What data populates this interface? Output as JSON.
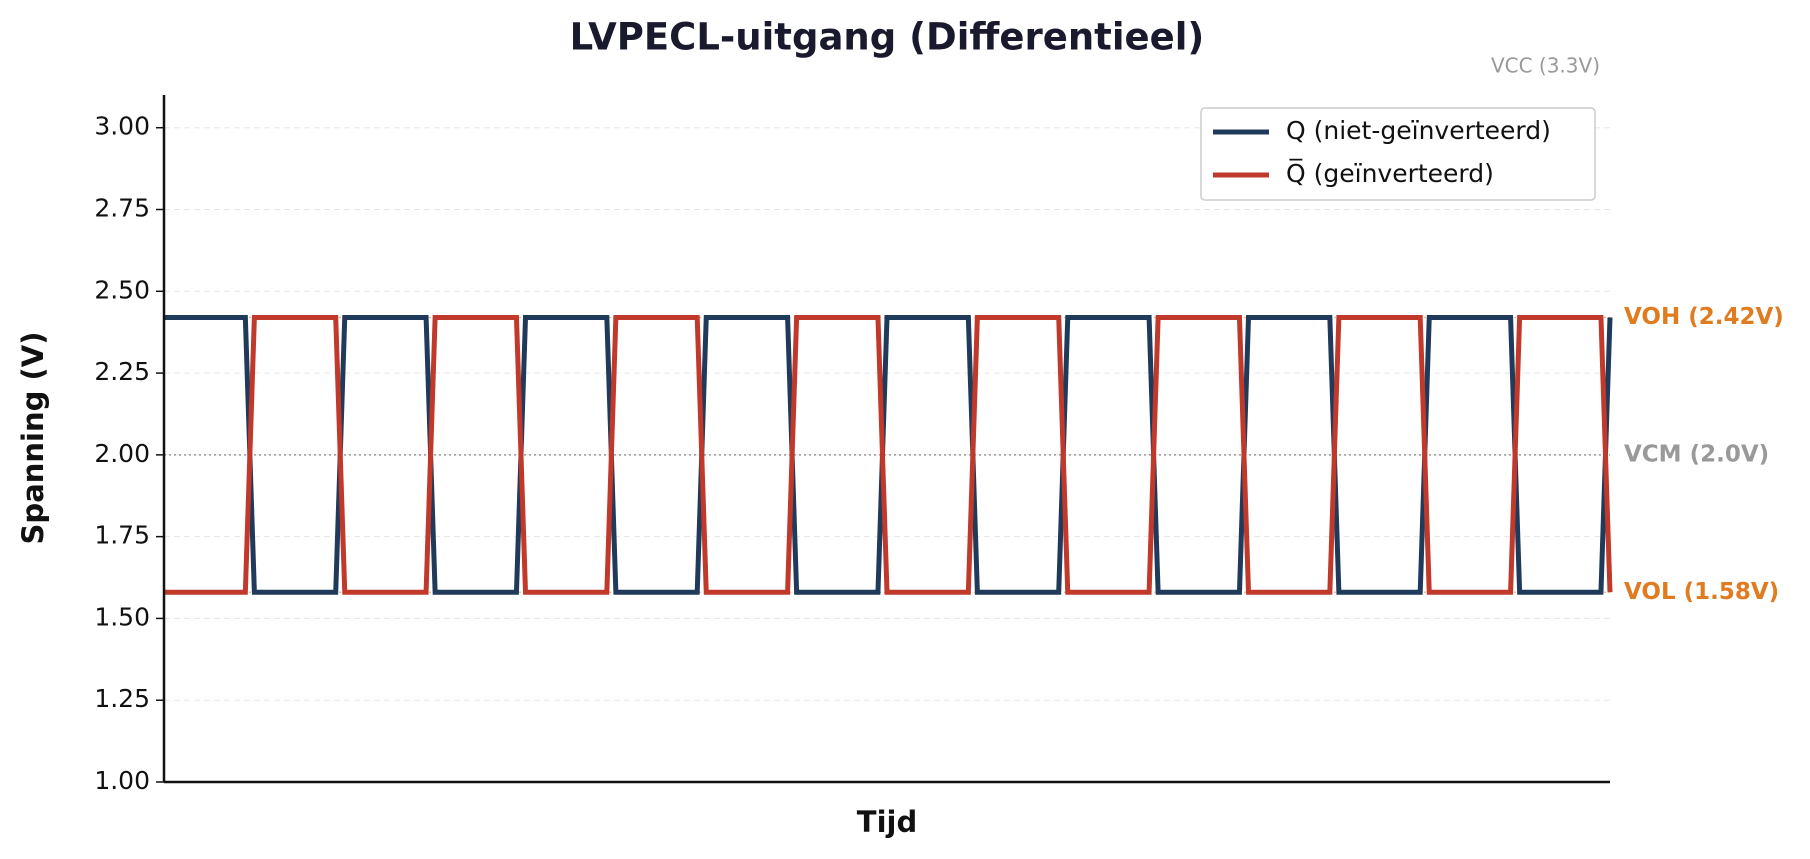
{
  "chart_data": {
    "type": "line",
    "title": "LVPECL-uitgang (Differentieel)",
    "x_label": "Tijd",
    "y_label": "Spanning (V)",
    "x": [
      0,
      0.45,
      0.5,
      0.95,
      1,
      1.45,
      1.5,
      1.95,
      2,
      2.45,
      2.5,
      2.95,
      3,
      3.45,
      3.5,
      3.95,
      4,
      4.45,
      4.5,
      4.95,
      5,
      5.45,
      5.5,
      5.95,
      6,
      6.45,
      6.5,
      6.95,
      7,
      7.45,
      7.5,
      7.95,
      8
    ],
    "series": [
      {
        "name": "Q (niet-geïnverteerd)",
        "color": "#1f3a5a",
        "values": [
          2.42,
          2.42,
          1.58,
          1.58,
          2.42,
          2.42,
          1.58,
          1.58,
          2.42,
          2.42,
          1.58,
          1.58,
          2.42,
          2.42,
          1.58,
          1.58,
          2.42,
          2.42,
          1.58,
          1.58,
          2.42,
          2.42,
          1.58,
          1.58,
          2.42,
          2.42,
          1.58,
          1.58,
          2.42,
          2.42,
          1.58,
          1.58,
          2.42
        ]
      },
      {
        "name": "Q̅ (geïnverteerd)",
        "color": "#c0392b",
        "values": [
          1.58,
          1.58,
          2.42,
          2.42,
          1.58,
          1.58,
          2.42,
          2.42,
          1.58,
          1.58,
          2.42,
          2.42,
          1.58,
          1.58,
          2.42,
          2.42,
          1.58,
          1.58,
          2.42,
          2.42,
          1.58,
          1.58,
          2.42,
          2.42,
          1.58,
          1.58,
          2.42,
          2.42,
          1.58,
          1.58,
          2.42,
          2.42,
          1.58
        ]
      }
    ],
    "xlim": [
      0,
      8
    ],
    "ylim": [
      1.0,
      3.1
    ],
    "yticks": [
      {
        "value": 1,
        "label": "1.00"
      },
      {
        "value": 1.25,
        "label": "1.25"
      },
      {
        "value": 1.5,
        "label": "1.50"
      },
      {
        "value": 1.75,
        "label": "1.75"
      },
      {
        "value": 2,
        "label": "2.00"
      },
      {
        "value": 2.25,
        "label": "2.25"
      },
      {
        "value": 2.5,
        "label": "2.50"
      },
      {
        "value": 2.75,
        "label": "2.75"
      },
      {
        "value": 3,
        "label": "3.00"
      }
    ],
    "grid": true,
    "legend": "upper right",
    "reference_lines": [
      {
        "value": 3.3,
        "label": "VCC (3.3V)",
        "color": "#999999"
      },
      {
        "value": 2.42,
        "label": "VOH (2.42V)",
        "color": "#e07b20"
      },
      {
        "value": 2.0,
        "label": "VCM (2.0V)",
        "color": "#999999"
      },
      {
        "value": 1.58,
        "label": "VOL (1.58V)",
        "color": "#e07b20"
      }
    ]
  }
}
